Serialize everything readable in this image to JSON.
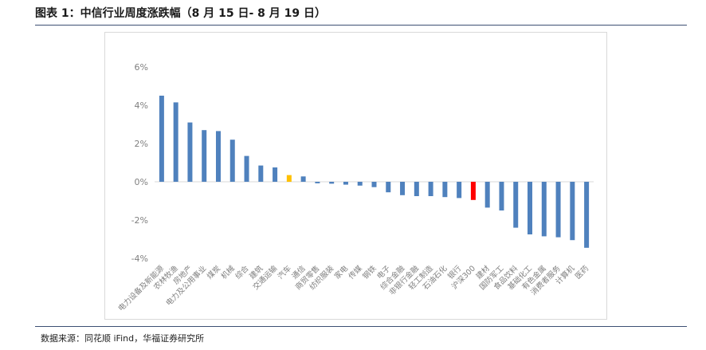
{
  "header": {
    "title": "图表 1：中信行业周度涨跌幅（8 月 15 日- 8 月 19 日）"
  },
  "footer": {
    "source": "数据来源：同花顺 iFind，华福证券研究所"
  },
  "colors": {
    "default_bar": "#4f81bd",
    "highlight_auto": "#ffc000",
    "highlight_index": "#ff0000"
  },
  "chart_data": {
    "type": "bar",
    "ylim": [
      -5,
      7
    ],
    "yticks": [
      -4,
      -2,
      0,
      2,
      4,
      6
    ],
    "ytick_labels": [
      "-4%",
      "-2%",
      "0%",
      "2%",
      "4%",
      "6%"
    ],
    "categories": [
      "电力设备及新能源",
      "农林牧渔",
      "房地产",
      "电力及公用事业",
      "煤炭",
      "机械",
      "综合",
      "建筑",
      "交通运输",
      "汽车",
      "通信",
      "商贸零售",
      "纺织服装",
      "家电",
      "传媒",
      "钢铁",
      "电子",
      "综合金融",
      "非银行金融",
      "轻工制造",
      "石油石化",
      "银行",
      "沪深300",
      "建材",
      "国防军工",
      "食品饮料",
      "基础化工",
      "有色金属",
      "消费者服务",
      "计算机",
      "医药"
    ],
    "values": [
      4.5,
      4.15,
      3.1,
      2.7,
      2.65,
      2.2,
      1.35,
      0.85,
      0.75,
      0.35,
      0.28,
      -0.08,
      -0.1,
      -0.15,
      -0.2,
      -0.28,
      -0.55,
      -0.7,
      -0.75,
      -0.75,
      -0.8,
      -0.85,
      -0.95,
      -1.35,
      -1.5,
      -2.4,
      -2.75,
      -2.85,
      -2.9,
      -3.05,
      -3.45
    ],
    "highlights": {
      "汽车": "#ffc000",
      "沪深300": "#ff0000"
    }
  }
}
